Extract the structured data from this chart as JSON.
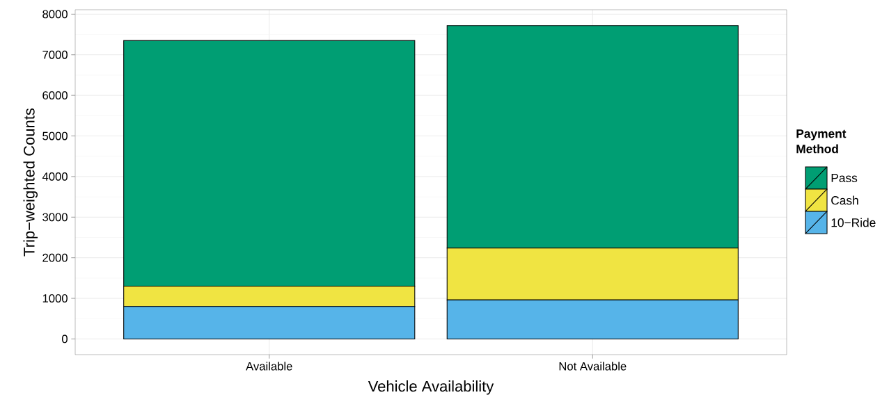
{
  "chart_data": {
    "type": "bar",
    "stacked": true,
    "xlabel": "Vehicle Availability",
    "ylabel": "Trip−weighted Counts",
    "legend_title": "Payment Method",
    "categories": [
      "Available",
      "Not Available"
    ],
    "series": [
      {
        "name": "10−Ride",
        "color": "#56b4e9",
        "values": [
          800,
          960
        ]
      },
      {
        "name": "Cash",
        "color": "#f0e442",
        "values": [
          500,
          1280
        ]
      },
      {
        "name": "Pass",
        "color": "#009e73",
        "values": [
          6050,
          5480
        ]
      }
    ],
    "ylim": [
      -386,
      8109
    ],
    "yticks": [
      0,
      1000,
      2000,
      3000,
      4000,
      5000,
      6000,
      7000,
      8000
    ],
    "grid": true,
    "legend": "right"
  }
}
